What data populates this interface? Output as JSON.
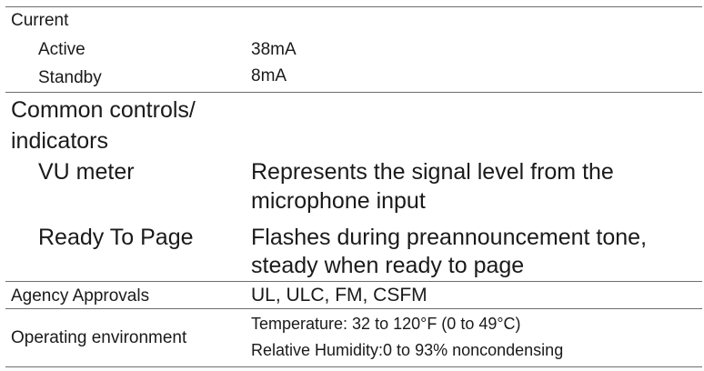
{
  "spec_table": {
    "current": {
      "label": "Current",
      "active_label": "Active",
      "active_value": "38mA",
      "standby_label": "Standby",
      "standby_value": "8mA"
    },
    "controls": {
      "label_line1": "Common controls/",
      "label_line2": "indicators",
      "vu_label": "VU meter",
      "vu_value_line1": "Represents the signal level from the",
      "vu_value_line2": "microphone input",
      "rtp_label": "Ready To Page",
      "rtp_value_line1": "Flashes during preannouncement tone,",
      "rtp_value_line2": "steady when ready to page"
    },
    "agency": {
      "label": "Agency Approvals",
      "value": "UL, ULC, FM, CSFM"
    },
    "environment": {
      "label": "Operating environment",
      "value_line1": "Temperature: 32 to 120°F (0 to 49°C)",
      "value_line2": "Relative Humidity:0 to 93% noncondensing"
    }
  }
}
